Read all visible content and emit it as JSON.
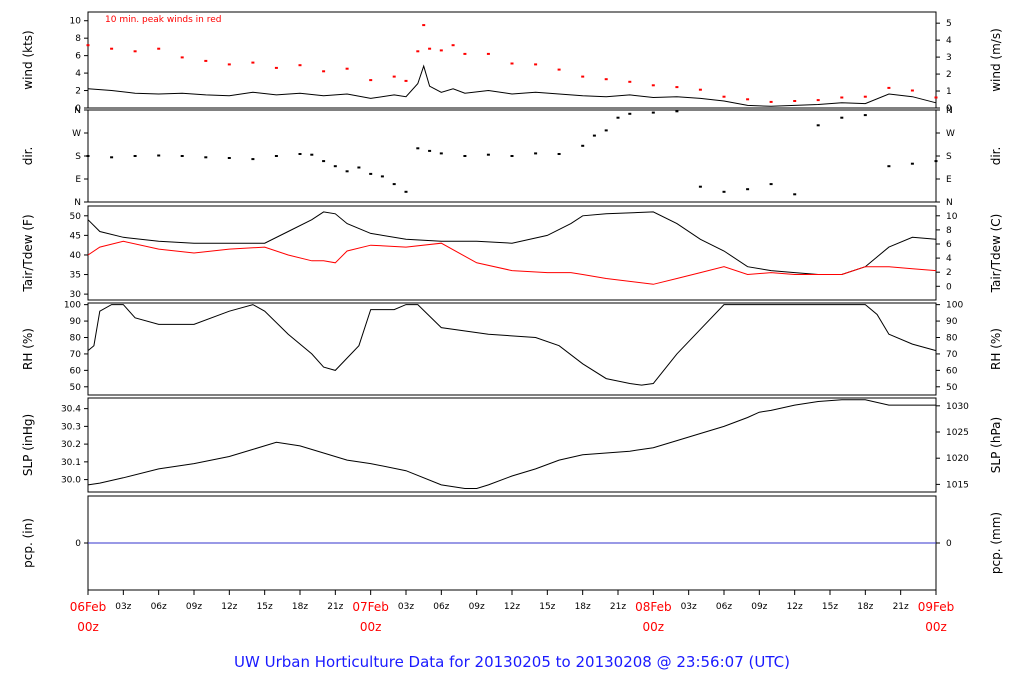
{
  "title": "UW Urban Horticulture Data for 20130205  to  20130208 @ 23:56:07  (UTC)",
  "colors": {
    "frame": "#000000",
    "series_primary": "#000000",
    "series_secondary": "#ff0000",
    "precip": "#3333cc",
    "dates": "#ff0000",
    "title": "#1a1aff"
  },
  "chart_data": {
    "type": "line",
    "x_ticks": {
      "hour_labels": [
        "03z",
        "06z",
        "09z",
        "12z",
        "15z",
        "18z",
        "21z",
        "03z",
        "06z",
        "09z",
        "12z",
        "15z",
        "18z",
        "21z",
        "03z",
        "06z",
        "09z",
        "12z",
        "15z",
        "18z",
        "21z"
      ],
      "date_labels": [
        {
          "date": "06Feb",
          "time": "00z"
        },
        {
          "date": "07Feb",
          "time": "00z"
        },
        {
          "date": "08Feb",
          "time": "00z"
        },
        {
          "date": "09Feb",
          "time": "00z"
        }
      ]
    },
    "panels": [
      {
        "name": "wind",
        "left_label": "wind (kts)",
        "right_label": "wind (m/s)",
        "annotation": "10 min. peak winds in red",
        "ylim": [
          0,
          11
        ],
        "left_ticks": [
          "0",
          "2",
          "4",
          "6",
          "8",
          "10"
        ],
        "right_ticks": [
          "0",
          "1",
          "2",
          "3",
          "4",
          "5"
        ],
        "right_scale": 0.5144,
        "series": [
          {
            "color": "#000000",
            "style": "line",
            "x": [
              0,
              2,
              4,
              6,
              8,
              10,
              12,
              14,
              16,
              18,
              20,
              22,
              24,
              26,
              27,
              28,
              28.5,
              29,
              30,
              31,
              32,
              34,
              36,
              38,
              40,
              42,
              44,
              46,
              48,
              50,
              52,
              54,
              56,
              58,
              60,
              62,
              64,
              66,
              68,
              70,
              72
            ],
            "y": [
              2.2,
              2.0,
              1.7,
              1.6,
              1.7,
              1.5,
              1.4,
              1.8,
              1.5,
              1.7,
              1.4,
              1.6,
              1.1,
              1.5,
              1.3,
              2.8,
              4.8,
              2.5,
              1.8,
              2.2,
              1.7,
              2.0,
              1.6,
              1.8,
              1.6,
              1.4,
              1.3,
              1.5,
              1.2,
              1.3,
              1.1,
              0.8,
              0.3,
              0.2,
              0.3,
              0.4,
              0.6,
              0.5,
              1.6,
              1.3,
              0.6
            ]
          },
          {
            "color": "#ff0000",
            "style": "points",
            "x": [
              0,
              2,
              4,
              6,
              8,
              10,
              12,
              14,
              16,
              18,
              20,
              22,
              24,
              26,
              27,
              28,
              28.5,
              29,
              30,
              31,
              32,
              34,
              36,
              38,
              40,
              42,
              44,
              46,
              48,
              50,
              52,
              54,
              56,
              58,
              60,
              62,
              64,
              66,
              68,
              70,
              72
            ],
            "y": [
              7.2,
              6.8,
              6.5,
              6.8,
              5.8,
              5.4,
              5.0,
              5.2,
              4.6,
              4.9,
              4.2,
              4.5,
              3.2,
              3.6,
              3.1,
              6.5,
              9.5,
              6.8,
              6.6,
              7.2,
              6.2,
              6.2,
              5.1,
              5.0,
              4.4,
              3.6,
              3.3,
              3.0,
              2.6,
              2.4,
              2.1,
              1.3,
              1.0,
              0.7,
              0.8,
              0.9,
              1.2,
              1.3,
              2.3,
              2.0,
              1.2
            ]
          }
        ]
      },
      {
        "name": "dir",
        "left_label": "dir.",
        "right_label": "dir.",
        "ylim": [
          0,
          360
        ],
        "left_ticks": [
          "N",
          "E",
          "S",
          "W",
          "N"
        ],
        "right_ticks": [
          "N",
          "E",
          "S",
          "W",
          "N"
        ],
        "series": [
          {
            "color": "#000000",
            "style": "points",
            "x": [
              0,
              2,
              4,
              6,
              8,
              10,
              12,
              14,
              16,
              18,
              19,
              20,
              21,
              22,
              23,
              24,
              25,
              26,
              27,
              28,
              29,
              30,
              32,
              34,
              36,
              38,
              40,
              42,
              43,
              44,
              45,
              46,
              48,
              50,
              52,
              54,
              56,
              58,
              60,
              62,
              64,
              66,
              68,
              70,
              72
            ],
            "y": [
              180,
              175,
              180,
              182,
              180,
              175,
              172,
              168,
              180,
              188,
              185,
              160,
              140,
              120,
              135,
              110,
              100,
              70,
              40,
              210,
              200,
              190,
              180,
              185,
              180,
              190,
              188,
              220,
              260,
              280,
              330,
              345,
              350,
              355,
              60,
              40,
              50,
              70,
              30,
              300,
              330,
              340,
              140,
              150,
              160
            ]
          }
        ]
      },
      {
        "name": "temp",
        "left_label": "Tair/Tdew (F)",
        "right_label": "Tair/Tdew (C)",
        "ylim": [
          28.5,
          52.5
        ],
        "left_ticks": [
          "30",
          "35",
          "40",
          "45",
          "50"
        ],
        "right_ticks": [
          "0",
          "2",
          "4",
          "6",
          "8",
          "10"
        ],
        "series": [
          {
            "color": "#000000",
            "style": "line",
            "x": [
              0,
              1,
              3,
              6,
              9,
              12,
              15,
              17,
              19,
              20,
              21,
              22,
              24,
              27,
              30,
              33,
              36,
              39,
              41,
              42,
              44,
              48,
              50,
              52,
              54,
              56,
              58,
              60,
              62,
              64,
              66,
              68,
              70,
              72
            ],
            "y": [
              49,
              46,
              44.5,
              43.5,
              43,
              43,
              43,
              46,
              49,
              51,
              50.5,
              48,
              45.5,
              44,
              43.5,
              43.5,
              43,
              45,
              48,
              50,
              50.5,
              51,
              48,
              44,
              41,
              37,
              36,
              35.5,
              35,
              35,
              37,
              42,
              44.5,
              44
            ]
          },
          {
            "color": "#ff0000",
            "style": "line",
            "x": [
              0,
              1,
              3,
              6,
              9,
              12,
              15,
              17,
              19,
              20,
              21,
              22,
              24,
              27,
              30,
              33,
              36,
              39,
              41,
              42,
              44,
              48,
              50,
              52,
              54,
              56,
              58,
              60,
              62,
              64,
              66,
              68,
              70,
              72
            ],
            "y": [
              40,
              42,
              43.5,
              41.5,
              40.5,
              41.5,
              42,
              40,
              38.5,
              38.5,
              38,
              41,
              42.5,
              42,
              43,
              38,
              36,
              35.5,
              35.5,
              35,
              34,
              32.5,
              34,
              35.5,
              37,
              35,
              35.5,
              35,
              35,
              35,
              37,
              37,
              36.5,
              36
            ]
          }
        ]
      },
      {
        "name": "rh",
        "left_label": "RH (%)",
        "right_label": "RH (%)",
        "ylim": [
          45,
          101
        ],
        "left_ticks": [
          "50",
          "60",
          "70",
          "80",
          "90",
          "100"
        ],
        "right_ticks": [
          "50",
          "60",
          "70",
          "80",
          "90",
          "100"
        ],
        "series": [
          {
            "color": "#000000",
            "style": "line",
            "x": [
              0,
              0.5,
              1,
              2,
              3,
              4,
              6,
              9,
              12,
              14,
              15,
              17,
              19,
              20,
              21,
              23,
              24,
              26,
              27,
              28,
              30,
              34,
              38,
              40,
              42,
              44,
              46,
              47,
              48,
              50,
              52,
              54,
              56,
              58,
              60,
              62,
              66,
              67,
              68,
              70,
              72
            ],
            "y": [
              72,
              75,
              96,
              100,
              100,
              92,
              88,
              88,
              96,
              100,
              96,
              82,
              70,
              62,
              60,
              75,
              97,
              97,
              100,
              100,
              86,
              82,
              80,
              75,
              64,
              55,
              52,
              51,
              52,
              70,
              85,
              100,
              100,
              100,
              100,
              100,
              100,
              94,
              82,
              76,
              72
            ]
          }
        ]
      },
      {
        "name": "slp",
        "left_label": "SLP (inHg)",
        "right_label": "SLP (hPa)",
        "ylim": [
          29.93,
          30.46
        ],
        "left_ticks": [
          "30.0",
          "30.1",
          "30.2",
          "30.3",
          "30.4"
        ],
        "right_ticks": [
          "1015",
          "1020",
          "1025",
          "1030"
        ],
        "right_ticks_values": [
          1015,
          1020,
          1025,
          1030
        ],
        "hpa_to_inhg": 0.02953,
        "series": [
          {
            "color": "#000000",
            "style": "line",
            "x": [
              0,
              1,
              3,
              6,
              9,
              12,
              14,
              16,
              18,
              20,
              22,
              24,
              27,
              30,
              32,
              33,
              34,
              36,
              38,
              40,
              42,
              44,
              46,
              48,
              50,
              52,
              54,
              56,
              57,
              58,
              60,
              62,
              64,
              66,
              68,
              70,
              72
            ],
            "y": [
              29.97,
              29.98,
              30.01,
              30.06,
              30.09,
              30.13,
              30.17,
              30.21,
              30.19,
              30.15,
              30.11,
              30.09,
              30.05,
              29.97,
              29.95,
              29.95,
              29.97,
              30.02,
              30.06,
              30.11,
              30.14,
              30.15,
              30.16,
              30.18,
              30.22,
              30.26,
              30.3,
              30.35,
              30.38,
              30.39,
              30.42,
              30.44,
              30.45,
              30.45,
              30.42,
              30.42,
              30.42
            ]
          }
        ]
      },
      {
        "name": "pcp",
        "left_label": "pcp. (in)",
        "right_label": "pcp. (mm)",
        "ylim": [
          -1,
          1
        ],
        "left_ticks": [
          "0"
        ],
        "right_ticks": [
          "0"
        ],
        "series": [
          {
            "color": "#3333cc",
            "style": "line",
            "x": [
              0,
              72
            ],
            "y": [
              0,
              0
            ]
          }
        ]
      }
    ]
  }
}
